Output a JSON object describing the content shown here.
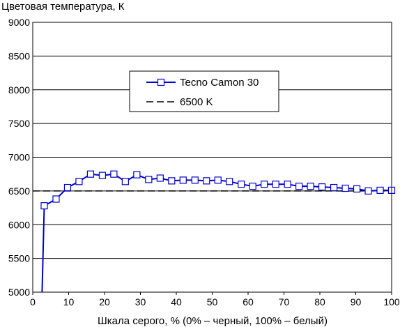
{
  "chart_data": {
    "type": "line",
    "title": "Цветовая температура, К",
    "xlabel": "Шкала серого, % (0% – черный, 100% – белый)",
    "ylabel": "",
    "xlim": [
      0,
      100
    ],
    "ylim": [
      5000,
      9000
    ],
    "x_ticks": [
      "0",
      "10",
      "20",
      "30",
      "40",
      "50",
      "60",
      "70",
      "80",
      "90",
      "100"
    ],
    "y_ticks": [
      "5000",
      "5500",
      "6000",
      "6500",
      "7000",
      "7500",
      "8000",
      "8500",
      "9000"
    ],
    "grid": "horizontal",
    "legend_position": "top-center",
    "series": [
      {
        "name": "Tecno Camon 30",
        "color": "#0000cc",
        "marker": "square",
        "x": [
          2.6,
          3.2,
          6.5,
          9.7,
          12.9,
          16.1,
          19.4,
          22.6,
          25.8,
          29.0,
          32.3,
          35.5,
          38.7,
          41.9,
          45.2,
          48.4,
          51.6,
          54.8,
          58.1,
          61.3,
          64.5,
          67.7,
          71.0,
          74.2,
          77.4,
          80.6,
          83.9,
          87.1,
          90.3,
          93.5,
          96.8,
          100
        ],
        "y": [
          5000,
          6280,
          6380,
          6550,
          6640,
          6750,
          6730,
          6750,
          6640,
          6740,
          6670,
          6690,
          6650,
          6660,
          6660,
          6650,
          6660,
          6640,
          6600,
          6570,
          6600,
          6600,
          6600,
          6570,
          6570,
          6560,
          6550,
          6540,
          6530,
          6500,
          6510,
          6510
        ],
        "marker_start_index": 1
      },
      {
        "name": "6500 K",
        "color": "#000000",
        "style": "dashed",
        "x": [
          0,
          100
        ],
        "y": [
          6500,
          6500
        ]
      }
    ]
  }
}
